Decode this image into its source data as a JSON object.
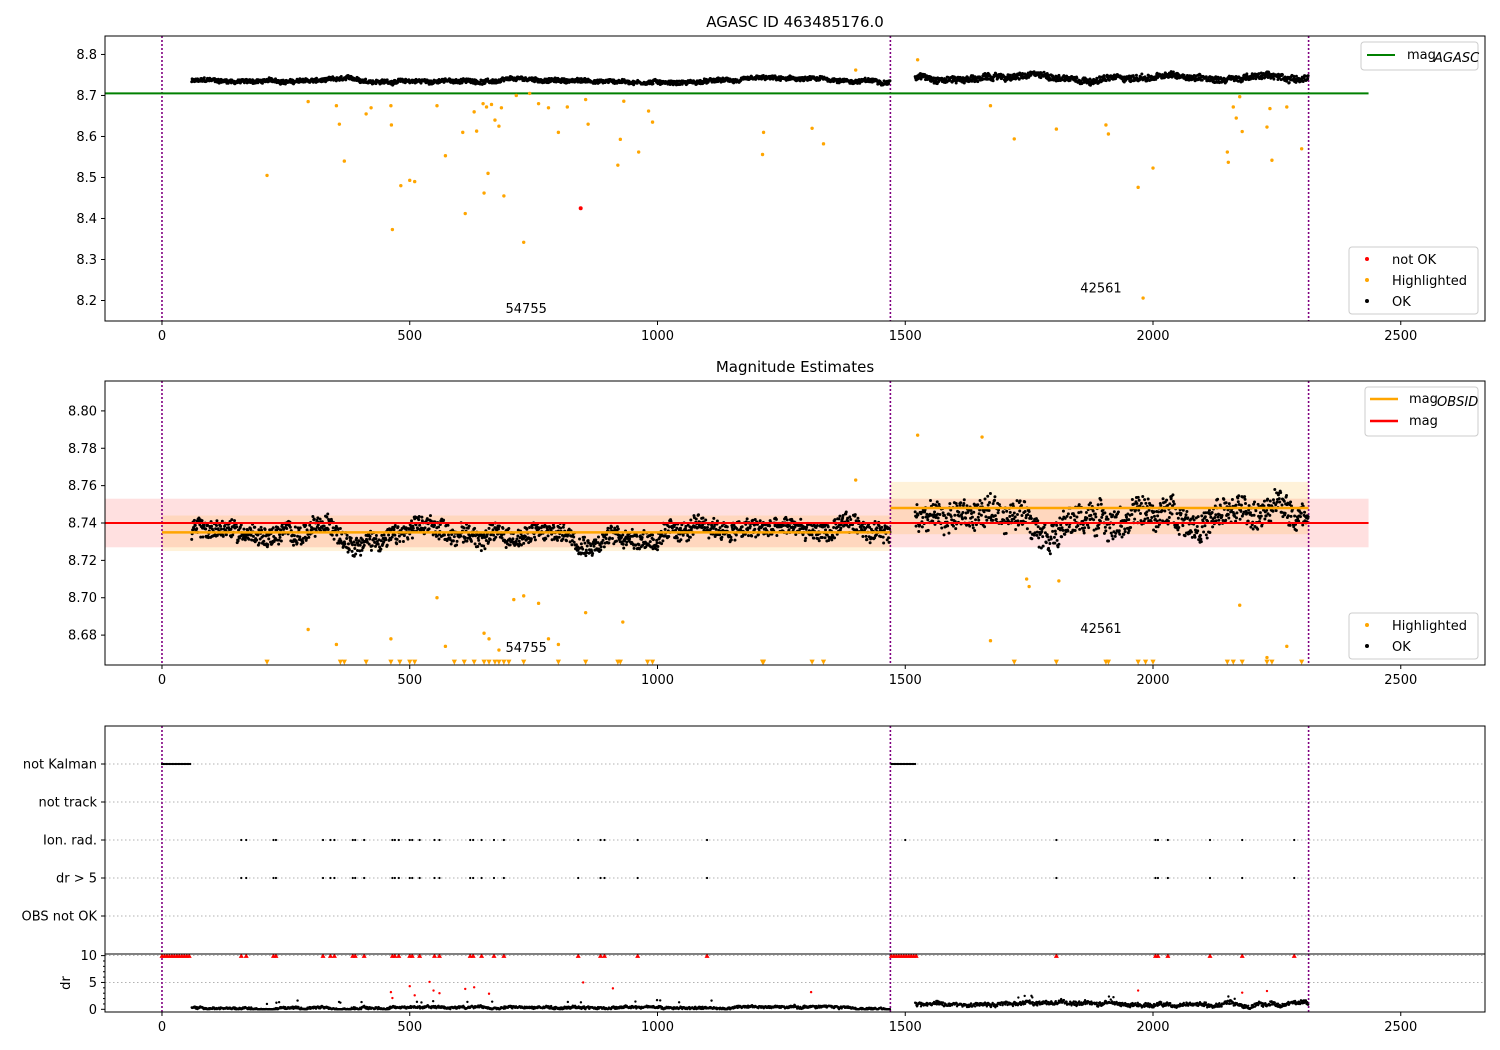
{
  "chart_data": [
    {
      "type": "scatter",
      "title": "AGASC ID 463485176.0",
      "xlabel": "",
      "ylabel": "",
      "xlim": [
        -115,
        2670
      ],
      "ylim": [
        8.15,
        8.845
      ],
      "xticks": [
        0,
        500,
        1000,
        1500,
        2000,
        2500
      ],
      "yticks": [
        8.2,
        8.3,
        8.4,
        8.5,
        8.6,
        8.7,
        8.8
      ],
      "obs_boundaries": [
        0,
        1470,
        2314
      ],
      "obs_labels": [
        {
          "text": "54755",
          "x": 735,
          "y": 8.17
        },
        {
          "text": "42561",
          "x": 1895,
          "y": 8.22
        }
      ],
      "horizontal_line": {
        "name": "mag_AGASC",
        "y": 8.705,
        "x_range": [
          -115,
          2435
        ],
        "color": "#008000"
      },
      "legend": {
        "placement": "top-right",
        "entries": [
          {
            "label": "mag",
            "sub": "AGASC",
            "color": "#008000"
          }
        ]
      },
      "legend2": {
        "placement": "bottom-right",
        "entries": [
          {
            "label": "not OK",
            "color": "#ff0000"
          },
          {
            "label": "Highlighted",
            "color": "#ffa500"
          },
          {
            "label": "OK",
            "color": "#000000"
          }
        ]
      },
      "series": [
        {
          "name": "OK",
          "color": "#000000",
          "segments": [
            {
              "x0": 60,
              "x1": 1470,
              "base": 8.735,
              "amp": 0.008
            },
            {
              "x0": 1520,
              "x1": 2314,
              "base": 8.745,
              "amp": 0.012
            }
          ]
        },
        {
          "name": "Highlighted",
          "color": "#ffa500",
          "points": [
            [
              212,
              8.505
            ],
            [
              295,
              8.685
            ],
            [
              352,
              8.675
            ],
            [
              358,
              8.63
            ],
            [
              368,
              8.54
            ],
            [
              412,
              8.655
            ],
            [
              422,
              8.67
            ],
            [
              462,
              8.675
            ],
            [
              463,
              8.628
            ],
            [
              465,
              8.373
            ],
            [
              482,
              8.48
            ],
            [
              500,
              8.493
            ],
            [
              510,
              8.49
            ],
            [
              555,
              8.675
            ],
            [
              572,
              8.553
            ],
            [
              607,
              8.61
            ],
            [
              612,
              8.412
            ],
            [
              630,
              8.66
            ],
            [
              635,
              8.613
            ],
            [
              648,
              8.68
            ],
            [
              650,
              8.462
            ],
            [
              655,
              8.672
            ],
            [
              658,
              8.51
            ],
            [
              665,
              8.678
            ],
            [
              672,
              8.64
            ],
            [
              680,
              8.625
            ],
            [
              685,
              8.67
            ],
            [
              690,
              8.455
            ],
            [
              715,
              8.7
            ],
            [
              730,
              8.342
            ],
            [
              742,
              8.705
            ],
            [
              760,
              8.68
            ],
            [
              780,
              8.67
            ],
            [
              800,
              8.61
            ],
            [
              818,
              8.672
            ],
            [
              855,
              8.69
            ],
            [
              860,
              8.63
            ],
            [
              920,
              8.53
            ],
            [
              925,
              8.593
            ],
            [
              932,
              8.686
            ],
            [
              962,
              8.562
            ],
            [
              982,
              8.662
            ],
            [
              990,
              8.635
            ],
            [
              1212,
              8.556
            ],
            [
              1214,
              8.61
            ],
            [
              1312,
              8.62
            ],
            [
              1335,
              8.582
            ],
            [
              1400,
              8.762
            ],
            [
              1525,
              8.787
            ],
            [
              1672,
              8.675
            ],
            [
              1720,
              8.594
            ],
            [
              1805,
              8.618
            ],
            [
              1905,
              8.628
            ],
            [
              1910,
              8.606
            ],
            [
              1970,
              8.476
            ],
            [
              1980,
              8.206
            ],
            [
              2000,
              8.523
            ],
            [
              2150,
              8.562
            ],
            [
              2152,
              8.537
            ],
            [
              2162,
              8.672
            ],
            [
              2168,
              8.645
            ],
            [
              2175,
              8.697
            ],
            [
              2180,
              8.612
            ],
            [
              2230,
              8.623
            ],
            [
              2236,
              8.668
            ],
            [
              2240,
              8.542
            ],
            [
              2270,
              8.672
            ],
            [
              2300,
              8.57
            ]
          ]
        },
        {
          "name": "not OK",
          "color": "#ff0000",
          "points": [
            [
              845,
              8.425
            ]
          ]
        }
      ]
    },
    {
      "type": "scatter",
      "title": "Magnitude Estimates",
      "xlabel": "",
      "ylabel": "",
      "xlim": [
        -115,
        2670
      ],
      "ylim": [
        8.664,
        8.816
      ],
      "xticks": [
        0,
        500,
        1000,
        1500,
        2000,
        2500
      ],
      "yticks": [
        8.68,
        8.7,
        8.72,
        8.74,
        8.76,
        8.78,
        8.8
      ],
      "ytick_labels": [
        "8.68",
        "8.70",
        "8.72",
        "8.74",
        "8.76",
        "8.78",
        "8.80"
      ],
      "obs_boundaries": [
        0,
        1470,
        2314
      ],
      "obs_labels": [
        {
          "text": "54755",
          "x": 735,
          "y": 8.671
        },
        {
          "text": "42561",
          "x": 1895,
          "y": 8.681
        }
      ],
      "mag": {
        "name": "mag",
        "y": 8.74,
        "band": [
          8.727,
          8.753
        ],
        "x_range": [
          -115,
          2435
        ],
        "color": "#ff0000"
      },
      "mag_obsid": [
        {
          "x0": 0,
          "x1": 1470,
          "y": 8.735,
          "band": [
            8.725,
            8.744
          ]
        },
        {
          "x0": 1470,
          "x1": 2314,
          "y": 8.748,
          "band": [
            8.734,
            8.762
          ]
        }
      ],
      "legend": {
        "placement": "top-right",
        "entries": [
          {
            "label": "mag",
            "sub": "OBSID",
            "color": "#ffa500"
          },
          {
            "label": "mag",
            "sub": "",
            "color": "#ff0000"
          }
        ]
      },
      "legend2": {
        "placement": "bottom-right",
        "entries": [
          {
            "label": "Highlighted",
            "color": "#ffa500"
          },
          {
            "label": "OK",
            "color": "#000000"
          }
        ]
      },
      "series": [
        {
          "name": "OK",
          "color": "#000000",
          "segments": [
            {
              "x0": 60,
              "x1": 1470,
              "base": 8.735,
              "amp": 0.008
            },
            {
              "x0": 1520,
              "x1": 2314,
              "base": 8.745,
              "amp": 0.012
            }
          ]
        },
        {
          "name": "Highlighted",
          "color": "#ffa500",
          "points": [
            [
              295,
              8.683
            ],
            [
              352,
              8.675
            ],
            [
              462,
              8.678
            ],
            [
              555,
              8.7
            ],
            [
              572,
              8.674
            ],
            [
              650,
              8.681
            ],
            [
              660,
              8.678
            ],
            [
              680,
              8.672
            ],
            [
              710,
              8.699
            ],
            [
              730,
              8.701
            ],
            [
              760,
              8.697
            ],
            [
              780,
              8.678
            ],
            [
              800,
              8.675
            ],
            [
              855,
              8.692
            ],
            [
              930,
              8.687
            ],
            [
              1400,
              8.763
            ],
            [
              1525,
              8.787
            ],
            [
              1655,
              8.786
            ],
            [
              1672,
              8.677
            ],
            [
              1745,
              8.71
            ],
            [
              1750,
              8.706
            ],
            [
              1810,
              8.709
            ],
            [
              2175,
              8.696
            ],
            [
              2230,
              8.668
            ],
            [
              2270,
              8.674
            ]
          ]
        },
        {
          "name": "Highlighted (below range)",
          "color": "#ffa500",
          "marker": "triangle",
          "y": 8.6655,
          "x": [
            212,
            360,
            368,
            412,
            462,
            480,
            500,
            510,
            590,
            610,
            630,
            650,
            660,
            672,
            680,
            690,
            700,
            730,
            800,
            855,
            920,
            925,
            980,
            990,
            1212,
            1214,
            1312,
            1335,
            1720,
            1805,
            1905,
            1910,
            1970,
            1985,
            2000,
            2150,
            2162,
            2180,
            2230,
            2240,
            2300
          ]
        }
      ]
    },
    {
      "type": "scatter",
      "title": "",
      "xlabel": "",
      "ylabel": "",
      "xlim": [
        -115,
        2670
      ],
      "categories": [
        "not Kalman",
        "not track",
        "Ion. rad.",
        "dr > 5",
        "OBS not OK"
      ],
      "obs_boundaries": [
        0,
        1470,
        2314
      ],
      "flags": {
        "not Kalman": {
          "ranges": [
            [
              0,
              58
            ],
            [
              1472,
              1522
            ]
          ]
        },
        "not track": {
          "ranges": []
        },
        "Ion. rad.": {
          "x": [
            160,
            170,
            225,
            230,
            325,
            340,
            348,
            385,
            390,
            408,
            465,
            470,
            478,
            500,
            505,
            520,
            550,
            560,
            622,
            628,
            645,
            670,
            690,
            840,
            885,
            893,
            960,
            1100,
            1500,
            1805,
            2005,
            2010,
            2030,
            2115,
            2180,
            2285
          ]
        },
        "dr > 5": {
          "x": [
            160,
            170,
            225,
            230,
            325,
            340,
            348,
            385,
            390,
            408,
            465,
            470,
            478,
            500,
            505,
            520,
            550,
            560,
            622,
            628,
            645,
            670,
            690,
            840,
            885,
            893,
            960,
            1100,
            1805,
            2005,
            2010,
            2030,
            2115,
            2180,
            2285
          ]
        },
        "OBS not OK": {
          "x": []
        }
      }
    },
    {
      "type": "scatter",
      "title": "",
      "xlabel": "",
      "ylabel": "dr",
      "xlim": [
        -115,
        2670
      ],
      "ylim": [
        -0.5,
        10.3
      ],
      "yticks": [
        0,
        5,
        10
      ],
      "obs_boundaries": [
        0,
        1470,
        2314
      ],
      "series": [
        {
          "name": "dr",
          "color": "#000000",
          "segments": [
            {
              "x0": 60,
              "x1": 1470,
              "base": 0.3,
              "amp": 0.5
            },
            {
              "x0": 1520,
              "x1": 2314,
              "base": 1.0,
              "amp": 0.8
            }
          ]
        },
        {
          "name": "dr high",
          "color": "#ff0000",
          "points": [
            [
              462,
              3.2
            ],
            [
              465,
              2.1
            ],
            [
              500,
              4.3
            ],
            [
              510,
              2.6
            ],
            [
              540,
              5.1
            ],
            [
              548,
              3.5
            ],
            [
              560,
              3.0
            ],
            [
              612,
              3.8
            ],
            [
              630,
              4.1
            ],
            [
              660,
              2.9
            ],
            [
              850,
              5.0
            ],
            [
              910,
              3.9
            ],
            [
              1310,
              3.2
            ],
            [
              1970,
              3.5
            ],
            [
              2180,
              3.1
            ],
            [
              2230,
              3.4
            ]
          ]
        },
        {
          "name": "dr capped",
          "color": "#ff0000",
          "marker": "triangle",
          "y": 10,
          "x": [
            0,
            5,
            10,
            15,
            20,
            25,
            30,
            35,
            40,
            45,
            50,
            55,
            160,
            170,
            225,
            230,
            325,
            340,
            348,
            385,
            390,
            408,
            465,
            470,
            478,
            500,
            505,
            520,
            550,
            560,
            622,
            628,
            645,
            670,
            690,
            840,
            885,
            893,
            960,
            1100,
            1472,
            1477,
            1482,
            1487,
            1492,
            1497,
            1502,
            1507,
            1512,
            1517,
            1522,
            1805,
            2005,
            2010,
            2030,
            2115,
            2180,
            2285
          ]
        }
      ]
    }
  ]
}
